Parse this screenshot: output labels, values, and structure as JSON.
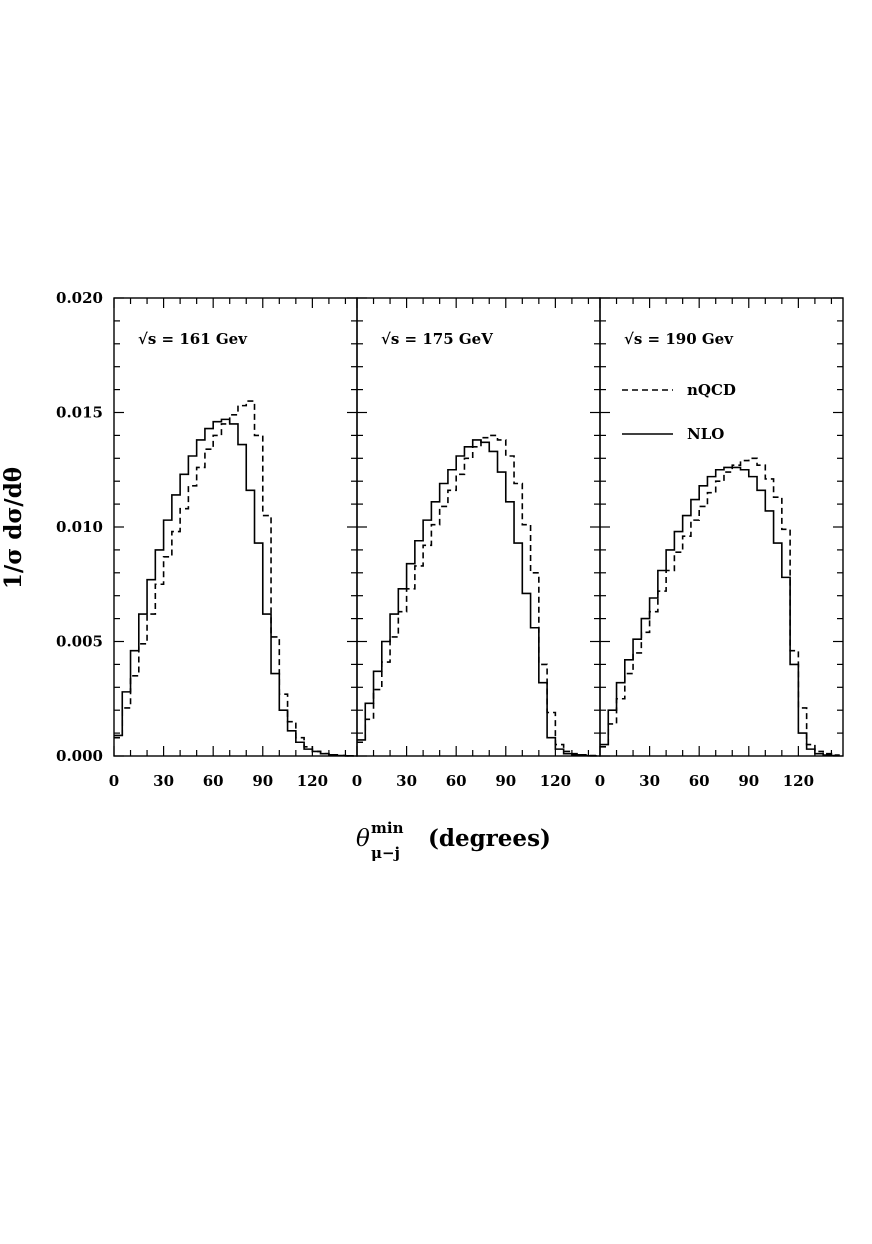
{
  "chart_data": {
    "type": "line",
    "style": "step-histogram",
    "ylabel": "1/σ  dσ/dθ",
    "xlabel": {
      "symbol": "θ",
      "superscript": "min",
      "subscript": "μ−j",
      "units": "(degrees)"
    },
    "xlim": [
      0,
      147
    ],
    "ylim": [
      0,
      0.02
    ],
    "x_ticks": [
      "0",
      "30",
      "60",
      "90",
      "120"
    ],
    "y_ticks": [
      "0.000",
      "0.005",
      "0.010",
      "0.015",
      "0.020"
    ],
    "bin_width": 5,
    "legend": {
      "placement": "upper-right of third panel",
      "entries": [
        {
          "name": "nQCD",
          "style": "dashed"
        },
        {
          "name": "NLO",
          "style": "solid"
        }
      ]
    },
    "panels": [
      {
        "label": "√s = 161 Gev",
        "series": [
          {
            "name": "nQCD",
            "style": "dashed",
            "values": [
              0.0008,
              0.0021,
              0.0035,
              0.0049,
              0.0062,
              0.0075,
              0.0087,
              0.0098,
              0.0108,
              0.0118,
              0.0126,
              0.0134,
              0.014,
              0.0145,
              0.0149,
              0.0153,
              0.0155,
              0.014,
              0.0105,
              0.0052,
              0.0027,
              0.0015,
              0.0008,
              0.0004,
              0.0002,
              0.0001,
              5e-05,
              2e-05,
              1e-05
            ]
          },
          {
            "name": "NLO",
            "style": "solid",
            "values": [
              0.0009,
              0.0028,
              0.0046,
              0.0062,
              0.0077,
              0.009,
              0.0103,
              0.0114,
              0.0123,
              0.0131,
              0.0138,
              0.0143,
              0.0146,
              0.0147,
              0.0145,
              0.0136,
              0.0116,
              0.0093,
              0.0062,
              0.0036,
              0.002,
              0.0011,
              0.0006,
              0.0003,
              0.0002,
              0.0001,
              5e-05,
              2e-05,
              1e-05
            ]
          }
        ]
      },
      {
        "label": "√s = 175 GeV",
        "series": [
          {
            "name": "nQCD",
            "style": "dashed",
            "values": [
              0.0006,
              0.0016,
              0.0029,
              0.0041,
              0.0052,
              0.0063,
              0.0073,
              0.0083,
              0.0092,
              0.0101,
              0.0109,
              0.0116,
              0.0123,
              0.013,
              0.0135,
              0.0139,
              0.014,
              0.0138,
              0.0131,
              0.0119,
              0.0101,
              0.008,
              0.004,
              0.0019,
              0.0005,
              0.0002,
              0.0001,
              5e-05,
              2e-05
            ]
          },
          {
            "name": "NLO",
            "style": "solid",
            "values": [
              0.0007,
              0.0023,
              0.0037,
              0.005,
              0.0062,
              0.0073,
              0.0084,
              0.0094,
              0.0103,
              0.0111,
              0.0119,
              0.0125,
              0.0131,
              0.0135,
              0.0138,
              0.0137,
              0.0133,
              0.0124,
              0.0111,
              0.0093,
              0.0071,
              0.0056,
              0.0032,
              0.0008,
              0.0003,
              0.0001,
              5e-05,
              2e-05,
              1e-05
            ]
          }
        ]
      },
      {
        "label": "√s = 190 Gev",
        "series": [
          {
            "name": "nQCD",
            "style": "dashed",
            "values": [
              0.0004,
              0.0014,
              0.0025,
              0.0036,
              0.0045,
              0.0054,
              0.0063,
              0.0072,
              0.0081,
              0.0089,
              0.0096,
              0.0103,
              0.0109,
              0.0115,
              0.012,
              0.0124,
              0.0127,
              0.0129,
              0.013,
              0.0127,
              0.0121,
              0.0113,
              0.0099,
              0.0046,
              0.0021,
              0.0005,
              0.0002,
              0.0001,
              4e-05
            ]
          },
          {
            "name": "NLO",
            "style": "solid",
            "values": [
              0.0005,
              0.002,
              0.0032,
              0.0042,
              0.0051,
              0.006,
              0.0069,
              0.0081,
              0.009,
              0.0098,
              0.0105,
              0.0112,
              0.0118,
              0.0122,
              0.0125,
              0.0126,
              0.0126,
              0.0125,
              0.0122,
              0.0116,
              0.0107,
              0.0093,
              0.0078,
              0.004,
              0.001,
              0.0003,
              0.0001,
              4e-05,
              2e-05
            ]
          }
        ]
      }
    ]
  }
}
